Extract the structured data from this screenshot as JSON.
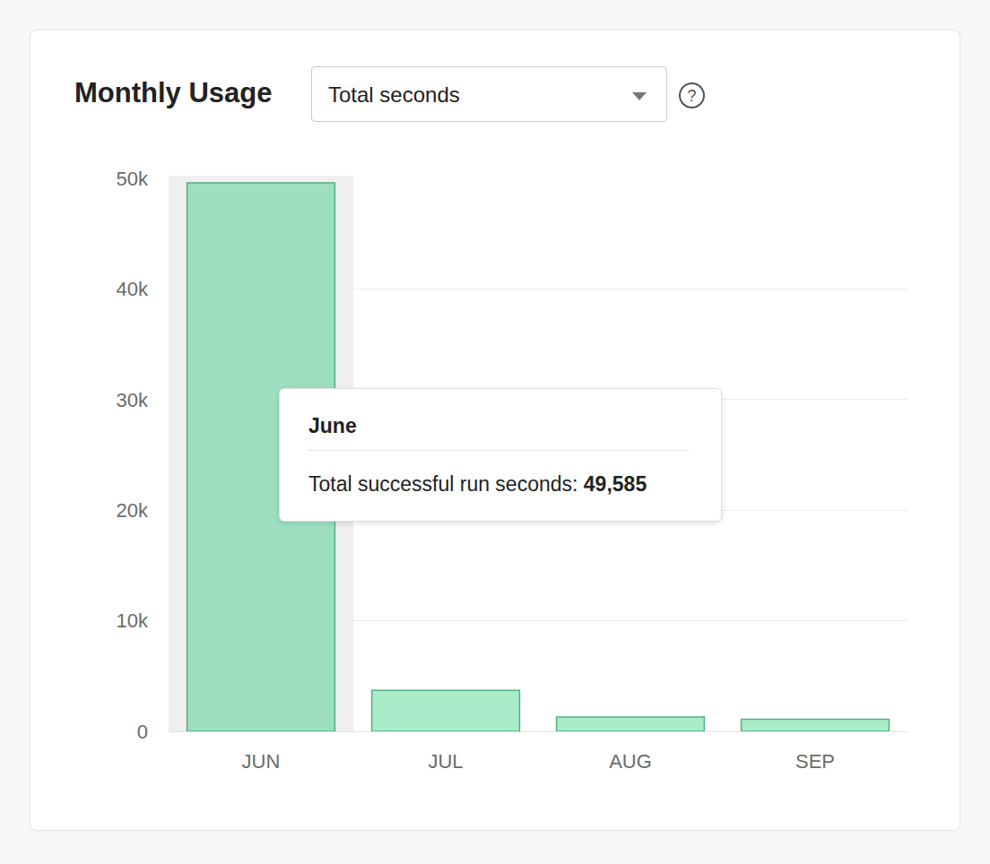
{
  "chart_data": {
    "type": "bar",
    "title": "Monthly Usage",
    "selector": "Total seconds",
    "help_icon": "?",
    "categories": [
      "JUN",
      "JUL",
      "AUG",
      "SEP"
    ],
    "values": [
      49585,
      3700,
      1300,
      1100
    ],
    "colors": [
      "#9ddfc0",
      "#a8ecc9",
      "#a8ecc9",
      "#a8ecc9"
    ],
    "ylim": [
      0,
      50000
    ],
    "yticks": [
      0,
      {
        "value": 10000,
        "label": "10k"
      },
      {
        "value": 20000,
        "label": "20k"
      },
      {
        "value": 30000,
        "label": "30k"
      },
      {
        "value": 40000,
        "label": "40k"
      },
      {
        "value": 50000,
        "label": "50k"
      }
    ],
    "grid": true,
    "tooltip": {
      "category": "JUN",
      "title": "June",
      "text": "Total successful run seconds: ",
      "value_label": "49,585"
    }
  }
}
